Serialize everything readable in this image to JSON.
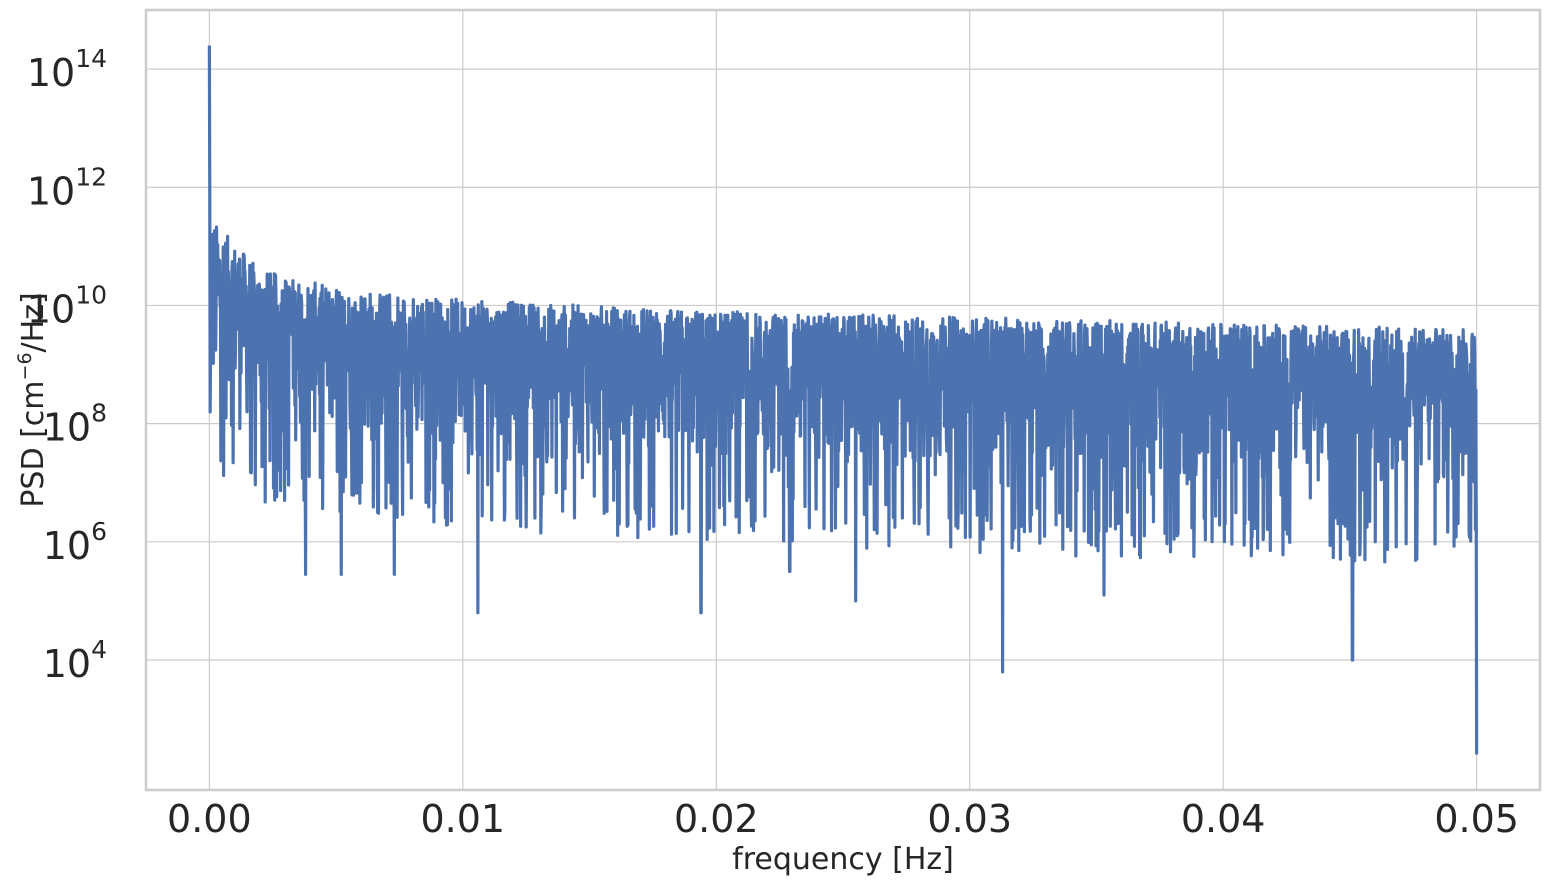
{
  "chart_data": {
    "type": "line",
    "title": "",
    "xlabel": "frequency [Hz]",
    "ylabel": {
      "prefix": "PSD [cm",
      "exponent": "−6",
      "suffix": "/Hz]"
    },
    "xlim": [
      -0.0025,
      0.0525
    ],
    "ylim_log10": [
      1.8,
      15.0
    ],
    "yscale": "log",
    "grid": true,
    "x_ticks": [
      "0.00",
      "0.01",
      "0.02",
      "0.03",
      "0.04",
      "0.05"
    ],
    "x_tick_values": [
      0.0,
      0.01,
      0.02,
      0.03,
      0.04,
      0.05
    ],
    "y_ticks": [
      {
        "base": "10",
        "exp": "4",
        "log10": 4
      },
      {
        "base": "10",
        "exp": "6",
        "log10": 6
      },
      {
        "base": "10",
        "exp": "8",
        "log10": 8
      },
      {
        "base": "10",
        "exp": "10",
        "log10": 10
      },
      {
        "base": "10",
        "exp": "12",
        "log10": 12
      },
      {
        "base": "10",
        "exp": "14",
        "log10": 14
      }
    ],
    "series": [
      {
        "color": "#4c72b0",
        "description_points_log10": {
          "peak_at_zero": 14.4,
          "frequency_max": 0.05
        },
        "upper_envelope_log10": [
          [
            0.0,
            11.5
          ],
          [
            0.002,
            10.6
          ],
          [
            0.005,
            10.3
          ],
          [
            0.01,
            10.1
          ],
          [
            0.02,
            9.9
          ],
          [
            0.03,
            9.8
          ],
          [
            0.04,
            9.7
          ],
          [
            0.05,
            9.6
          ]
        ],
        "typical_low_log10": [
          [
            0.0,
            7.6
          ],
          [
            0.01,
            7.0
          ],
          [
            0.02,
            6.8
          ],
          [
            0.03,
            6.6
          ],
          [
            0.04,
            6.5
          ],
          [
            0.05,
            6.4
          ]
        ],
        "notable_dips_log10": [
          [
            0.0038,
            5.45
          ],
          [
            0.0052,
            5.45
          ],
          [
            0.0073,
            5.45
          ],
          [
            0.0106,
            4.8
          ],
          [
            0.0194,
            4.8
          ],
          [
            0.0229,
            5.5
          ],
          [
            0.0255,
            5.0
          ],
          [
            0.0313,
            3.8
          ],
          [
            0.0353,
            5.1
          ],
          [
            0.0451,
            4.0
          ],
          [
            0.05,
            2.4
          ]
        ]
      }
    ]
  }
}
